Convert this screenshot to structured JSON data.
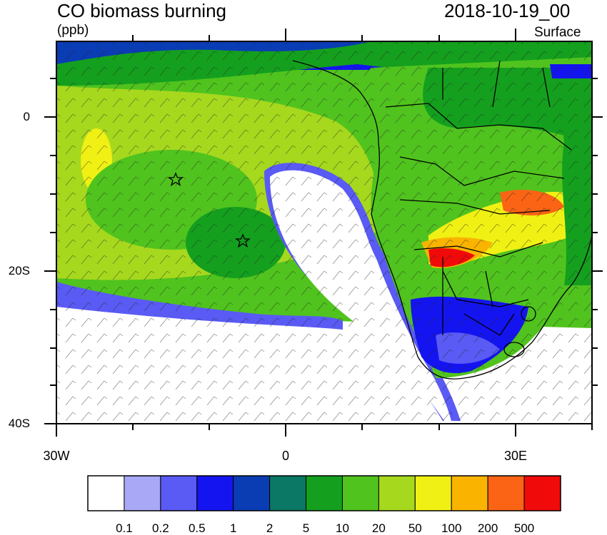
{
  "header": {
    "title": "CO biomass burning",
    "units": "(ppb)",
    "datetime": "2018-10-19_00",
    "level": "Surface"
  },
  "axes": {
    "lat_labels": [
      "0",
      "20S",
      "40S"
    ],
    "lon_labels": [
      "30W",
      "0",
      "30E"
    ]
  },
  "colorbar": {
    "labels": [
      "0.1",
      "0.2",
      "0.5",
      "1",
      "2",
      "5",
      "10",
      "20",
      "50",
      "100",
      "200",
      "500"
    ],
    "colors": [
      "#ffffff",
      "#a8a8f6",
      "#5a5af4",
      "#1414f0",
      "#0a3cb4",
      "#0a7864",
      "#14a01e",
      "#50c31e",
      "#a6d81e",
      "#f0f014",
      "#fab400",
      "#fa6414",
      "#f00a0a"
    ]
  },
  "map": {
    "region": "Southern Africa and South Atlantic",
    "lon_range": [
      -30,
      40
    ],
    "lat_range": [
      -40,
      10
    ],
    "markers": [
      "star",
      "star"
    ]
  }
}
